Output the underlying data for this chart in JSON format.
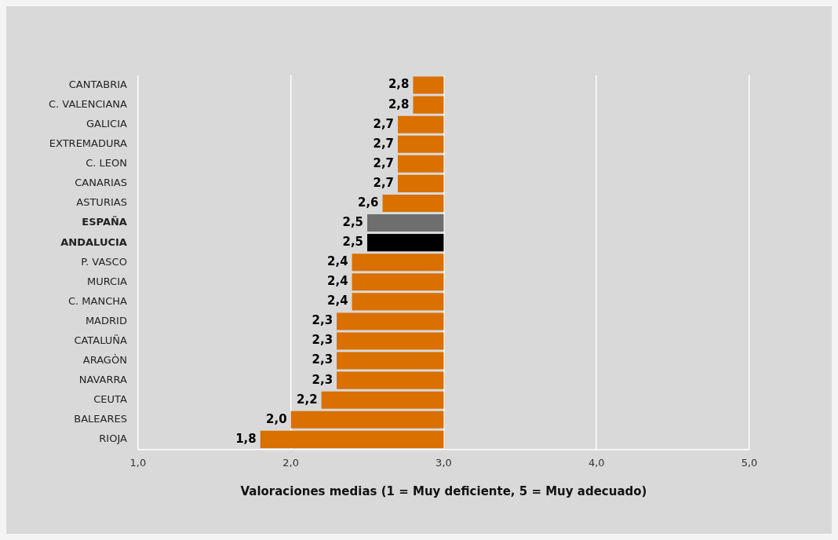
{
  "chart_data": {
    "type": "bar",
    "orientation": "horizontal",
    "xlabel": "Valoraciones medias (1 = Muy deficiente, 5 = Muy adecuado)",
    "categories": [
      "CANTABRIA",
      "C. VALENCIANA",
      "GALICIA",
      "EXTREMADURA",
      "C. LEON",
      "CANARIAS",
      "ASTURIAS",
      "ESPAÑA",
      "ANDALUCIA",
      "P. VASCO",
      "MURCIA",
      "C. MANCHA",
      "MADRID",
      "CATALUÑA",
      "ARAGÒN",
      "NAVARRA",
      "CEUTA",
      "BALEARES",
      "RIOJA"
    ],
    "base": [
      3,
      3,
      3,
      3,
      3,
      3,
      3,
      3,
      3,
      3,
      3,
      3,
      3,
      3,
      3,
      3,
      3,
      3,
      3
    ],
    "values": [
      -0.2,
      -0.2,
      -0.3,
      -0.3,
      -0.3,
      -0.3,
      -0.4,
      -0.5,
      -0.5,
      -0.6,
      -0.6,
      -0.6,
      -0.7,
      -0.7,
      -0.7,
      -0.7,
      -0.8,
      -1.0,
      -1.2
    ],
    "value_labels": [
      "2,8",
      "2,8",
      "2,7",
      "2,7",
      "2,7",
      "2,7",
      "2,6",
      "2,5",
      "2,5",
      "2,4",
      "2,4",
      "2,4",
      "2,3",
      "2,3",
      "2,3",
      "2,3",
      "2,2",
      "2,0",
      "1,8"
    ],
    "colors": [
      "#d97000",
      "#d97000",
      "#d97000",
      "#d97000",
      "#d97000",
      "#d97000",
      "#d97000",
      "#6e6e6e",
      "#000000",
      "#d97000",
      "#d97000",
      "#d97000",
      "#d97000",
      "#d97000",
      "#d97000",
      "#d97000",
      "#d97000",
      "#d97000",
      "#d97000"
    ],
    "xlim": [
      1,
      5
    ],
    "xticks": [
      {
        "value": 1,
        "label": "1,0"
      },
      {
        "value": 2,
        "label": "2,0"
      },
      {
        "value": 3,
        "label": "3,0"
      },
      {
        "value": 4,
        "label": "4,0"
      },
      {
        "value": 5,
        "label": "5,0"
      }
    ],
    "grid": "x",
    "legend": false
  }
}
